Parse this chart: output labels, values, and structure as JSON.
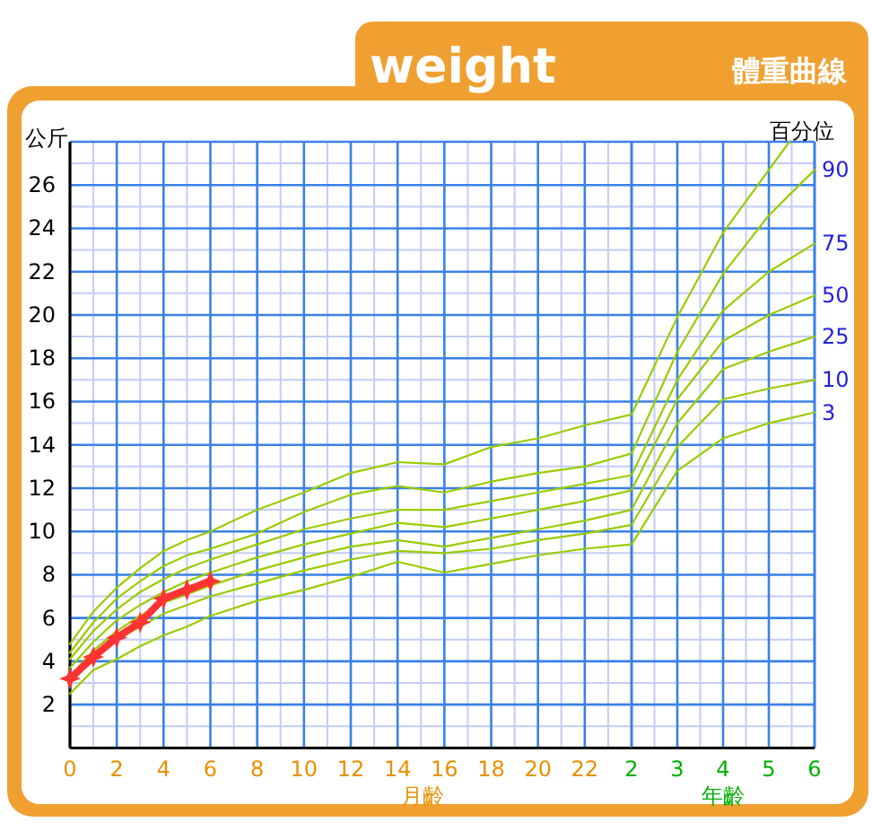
{
  "chart_data": [
    {
      "type": "line",
      "title": "weight",
      "xlabel": "月齡",
      "ylabel": "公斤",
      "x": [
        0,
        1,
        2,
        3,
        4,
        5,
        6,
        8,
        10,
        12,
        14,
        16,
        18,
        20,
        22,
        24
      ],
      "xlim": [
        0,
        24
      ],
      "xticks": [
        0,
        {
          "value": 1,
          "label": null
        },
        2,
        {
          "value": 3,
          "label": null
        },
        4,
        {
          "value": 5,
          "label": null
        },
        6,
        {
          "value": 7,
          "label": null
        },
        8,
        {
          "value": 9,
          "label": null
        },
        10,
        {
          "value": 11,
          "label": null
        },
        12,
        {
          "value": 13,
          "label": null
        },
        14,
        {
          "value": 15,
          "label": null
        },
        16,
        {
          "value": 17,
          "label": null
        },
        18,
        {
          "value": 19,
          "label": null
        },
        20,
        {
          "value": 21,
          "label": null
        },
        22,
        {
          "value": 23,
          "label": null
        },
        {
          "value": 24,
          "label": null
        }
      ],
      "ylim": [
        0,
        28
      ],
      "yticks": [
        {
          "value": 1,
          "label": null
        },
        2,
        {
          "value": 3,
          "label": null
        },
        4,
        {
          "value": 5,
          "label": null
        },
        6,
        {
          "value": 7,
          "label": null
        },
        8,
        {
          "value": 9,
          "label": null
        },
        10,
        {
          "value": 11,
          "label": null
        },
        12,
        {
          "value": 13,
          "label": null
        },
        14,
        {
          "value": 15,
          "label": null
        },
        16,
        {
          "value": 17,
          "label": null
        },
        18,
        {
          "value": 19,
          "label": null
        },
        20,
        {
          "value": 21,
          "label": null
        },
        22,
        {
          "value": 23,
          "label": null
        },
        24,
        {
          "value": 25,
          "label": null
        },
        26,
        {
          "value": 27,
          "label": null
        }
      ],
      "grid": true,
      "series": [
        {
          "color": "#99cc00",
          "values": [
            4.8,
            6.3,
            7.4,
            8.3,
            9.1,
            9.6,
            10.0,
            11.0,
            11.8,
            12.7,
            13.2,
            13.1,
            13.9,
            14.3,
            14.9,
            15.4
          ]
        },
        {
          "color": "#99cc00",
          "values": [
            4.4,
            5.8,
            6.9,
            7.7,
            8.4,
            8.9,
            9.2,
            9.9,
            10.9,
            11.7,
            12.1,
            11.8,
            12.3,
            12.7,
            13.0,
            13.6
          ]
        },
        {
          "color": "#99cc00",
          "values": [
            4.1,
            5.4,
            6.4,
            7.2,
            7.8,
            8.3,
            8.7,
            9.4,
            10.1,
            10.6,
            11.0,
            11.0,
            11.4,
            11.8,
            12.2,
            12.6
          ]
        },
        {
          "color": "#99cc00",
          "values": [
            3.7,
            4.9,
            5.9,
            6.6,
            7.2,
            7.7,
            8.1,
            8.8,
            9.4,
            9.9,
            10.4,
            10.2,
            10.6,
            11.0,
            11.4,
            11.9
          ]
        },
        {
          "color": "#99cc00",
          "values": [
            3.3,
            4.5,
            5.4,
            6.1,
            6.7,
            7.1,
            7.5,
            8.2,
            8.8,
            9.3,
            9.6,
            9.3,
            9.7,
            10.1,
            10.5,
            11.0
          ]
        },
        {
          "color": "#99cc00",
          "values": [
            3.0,
            4.1,
            5.0,
            5.6,
            6.2,
            6.6,
            7.0,
            7.6,
            8.2,
            8.7,
            9.1,
            9.0,
            9.2,
            9.6,
            9.9,
            10.3
          ]
        },
        {
          "color": "#99cc00",
          "values": [
            2.5,
            3.6,
            4.1,
            4.7,
            5.2,
            5.6,
            6.1,
            6.8,
            7.3,
            7.9,
            8.6,
            8.1,
            8.5,
            8.9,
            9.2,
            9.4
          ]
        },
        {
          "color": "#ff3333",
          "marker": "star",
          "x": [
            0,
            1,
            2,
            3,
            4,
            5,
            6
          ],
          "values": [
            3.2,
            4.2,
            5.1,
            5.8,
            6.9,
            7.3,
            7.7
          ]
        }
      ]
    },
    {
      "type": "line",
      "subtitle": "體重曲線",
      "xlabel": "年齡",
      "legend_title": "百分位",
      "x": [
        2,
        3,
        4,
        5,
        6
      ],
      "xlim": [
        2,
        6
      ],
      "xticks": [
        2,
        {
          "value": 2.5,
          "label": null
        },
        3,
        {
          "value": 3.5,
          "label": null
        },
        4,
        {
          "value": 4.5,
          "label": null
        },
        5,
        {
          "value": 5.5,
          "label": null
        },
        6
      ],
      "ylim": [
        0,
        28
      ],
      "yticks": [
        {
          "value": 1,
          "label": null
        },
        2,
        {
          "value": 3,
          "label": null
        },
        4,
        {
          "value": 5,
          "label": null
        },
        6,
        {
          "value": 7,
          "label": null
        },
        8,
        {
          "value": 9,
          "label": null
        },
        10,
        {
          "value": 11,
          "label": null
        },
        12,
        {
          "value": 13,
          "label": null
        },
        14,
        {
          "value": 15,
          "label": null
        },
        16,
        {
          "value": 17,
          "label": null
        },
        18,
        {
          "value": 19,
          "label": null
        },
        20,
        {
          "value": 21,
          "label": null
        },
        22,
        {
          "value": 23,
          "label": null
        },
        24,
        {
          "value": 25,
          "label": null
        },
        26,
        {
          "value": 27,
          "label": null
        }
      ],
      "grid": true,
      "tick_labels": "x",
      "series": [
        {
          "color": "#99cc00",
          "x": [
            2,
            3,
            4,
            5,
            5.45
          ],
          "values": [
            15.4,
            19.9,
            23.8,
            26.7,
            28
          ]
        },
        {
          "name": "90",
          "color": "#99cc00",
          "values": [
            13.6,
            18.3,
            21.9,
            24.6,
            26.7
          ]
        },
        {
          "name": "75",
          "color": "#99cc00",
          "values": [
            12.6,
            17.0,
            20.2,
            22.0,
            23.3
          ]
        },
        {
          "name": "50",
          "color": "#99cc00",
          "values": [
            11.9,
            16.1,
            18.8,
            20.0,
            20.9
          ]
        },
        {
          "name": "25",
          "color": "#99cc00",
          "values": [
            11.0,
            15.0,
            17.5,
            18.3,
            19.0
          ]
        },
        {
          "name": "10",
          "color": "#99cc00",
          "values": [
            10.3,
            13.9,
            16.1,
            16.6,
            17.0
          ]
        },
        {
          "name": "3",
          "color": "#99cc00",
          "values": [
            9.4,
            12.8,
            14.3,
            15.0,
            15.5
          ]
        }
      ]
    }
  ]
}
